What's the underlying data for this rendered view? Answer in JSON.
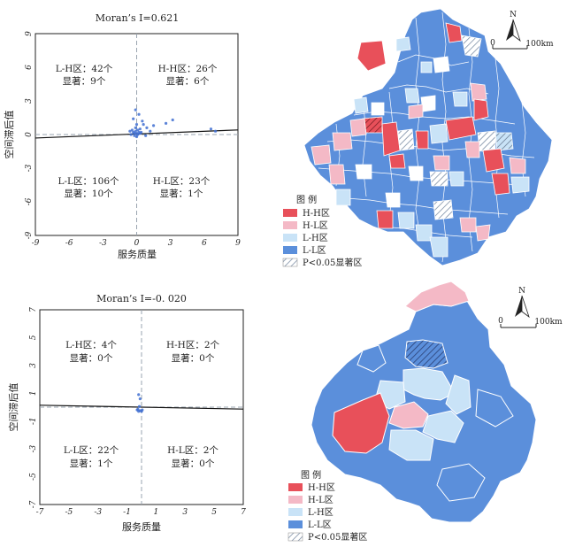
{
  "chart_data": [
    {
      "type": "scatter",
      "title": "Moran’s I=0.621",
      "xlabel": "服务质量",
      "ylabel": "空间滞后值",
      "xlim": [
        -9,
        9
      ],
      "ylim": [
        -9,
        9
      ],
      "xticks": [
        "-9",
        "-6",
        "-3",
        "0",
        "3",
        "6",
        "9"
      ],
      "yticks": [
        "9",
        "6",
        "3",
        "0",
        "-3",
        "-6",
        "-9"
      ],
      "regression": {
        "slope": 0.04,
        "intercept": 0.05
      },
      "quadrants": [
        {
          "label": "L-H区：42个",
          "sig": "显著：9个"
        },
        {
          "label": "H-H区：26个",
          "sig": "显著：6个"
        },
        {
          "label": "L-L区：106个",
          "sig": "显著：10个"
        },
        {
          "label": "H-L区：23个",
          "sig": "显著：1个"
        }
      ],
      "points": [
        [
          -0.3,
          0.2
        ],
        [
          -0.2,
          0.1
        ],
        [
          -0.1,
          0.3
        ],
        [
          0,
          0.1
        ],
        [
          0.1,
          0.0
        ],
        [
          0.2,
          0.2
        ],
        [
          -0.4,
          0.4
        ],
        [
          0.3,
          0.1
        ],
        [
          -0.2,
          -0.1
        ],
        [
          0.1,
          0.4
        ],
        [
          0.4,
          0.2
        ],
        [
          -0.1,
          0.6
        ],
        [
          0,
          0.9
        ],
        [
          -0.3,
          1.4
        ],
        [
          0.2,
          1.8
        ],
        [
          -0.1,
          2.2
        ],
        [
          0.5,
          1.2
        ],
        [
          0.9,
          0.6
        ],
        [
          1.2,
          0.3
        ],
        [
          0.6,
          0.9
        ],
        [
          1.5,
          0.8
        ],
        [
          2.6,
          1.0
        ],
        [
          3.2,
          1.3
        ],
        [
          0.8,
          -0.1
        ],
        [
          -0.5,
          0.0
        ],
        [
          -0.6,
          0.3
        ],
        [
          0.0,
          -0.2
        ],
        [
          0.3,
          0.5
        ],
        [
          6.6,
          0.5
        ],
        [
          7.0,
          0.3
        ]
      ]
    },
    {
      "type": "scatter",
      "title": "Moran’s I=-0. 020",
      "xlabel": "服务质量",
      "ylabel": "空间滞后值",
      "xlim": [
        -7,
        7
      ],
      "ylim": [
        -7,
        7
      ],
      "xticks": [
        "-7",
        "-5",
        "-3",
        "-1",
        "1",
        "3",
        "5",
        "7"
      ],
      "yticks": [
        "7",
        "5",
        "3",
        "1",
        "-1",
        "-3",
        "-5",
        "-7"
      ],
      "regression": {
        "slope": -0.02,
        "intercept": 0.0
      },
      "quadrants": [
        {
          "label": "L-H区：4个",
          "sig": "显著：0个"
        },
        {
          "label": "H-H区：2个",
          "sig": "显著：0个"
        },
        {
          "label": "L-L区：22个",
          "sig": "显著：1个"
        },
        {
          "label": "H-L区：2个",
          "sig": "显著：0个"
        }
      ],
      "points": [
        [
          -0.2,
          0.9
        ],
        [
          -0.1,
          0.6
        ],
        [
          -0.3,
          -0.2
        ],
        [
          -0.2,
          -0.3
        ],
        [
          -0.1,
          -0.25
        ],
        [
          0,
          -0.3
        ],
        [
          -0.25,
          -0.15
        ],
        [
          -0.15,
          0.05
        ],
        [
          0.05,
          -0.2
        ]
      ]
    }
  ],
  "maps": [
    {
      "north": "N",
      "scale_zero": "0",
      "scale_end": "100km",
      "legend": {
        "title": "图 例",
        "items": [
          {
            "label": "H-H区",
            "color": "#e8505a"
          },
          {
            "label": "H-L区",
            "color": "#f4b9c6"
          },
          {
            "label": "L-H区",
            "color": "#c9e3f7"
          },
          {
            "label": "L-L区",
            "color": "#5b8fdb"
          },
          {
            "label": "P<0.05显著区",
            "color": "hatch"
          }
        ]
      }
    },
    {
      "north": "N",
      "scale_zero": "0",
      "scale_end": "100km",
      "legend": {
        "title": "图 例",
        "items": [
          {
            "label": "H-H区",
            "color": "#e8505a"
          },
          {
            "label": "H-L区",
            "color": "#f4b9c6"
          },
          {
            "label": "L-H区",
            "color": "#c9e3f7"
          },
          {
            "label": "L-L区",
            "color": "#5b8fdb"
          },
          {
            "label": "P<0.05显著区",
            "color": "hatch"
          }
        ]
      }
    }
  ]
}
